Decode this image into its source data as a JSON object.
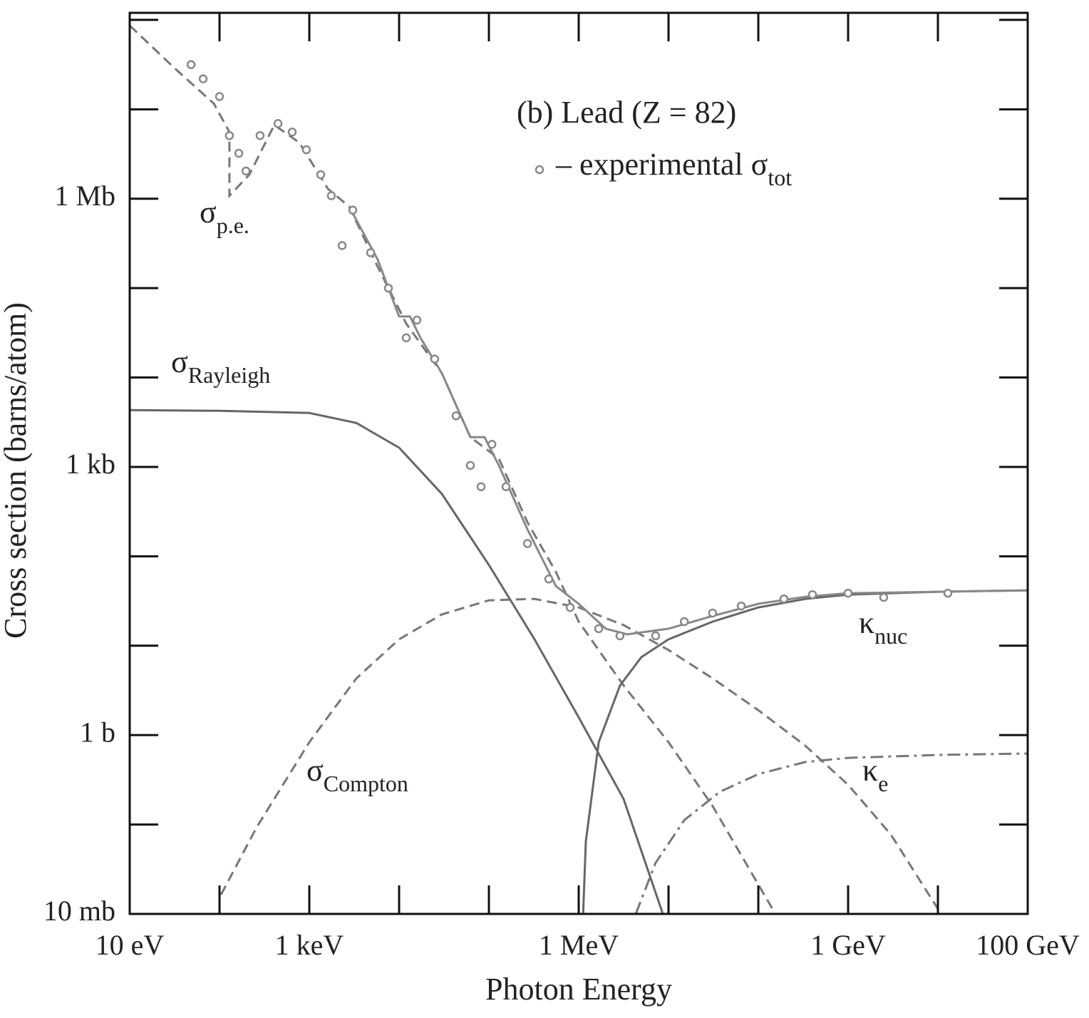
{
  "chart_data": {
    "type": "line",
    "xlabel": "Photon Energy",
    "ylabel": "Cross section (barns/atom)",
    "log_x": true,
    "log_y": true,
    "xlim": [
      10,
      100000000000.0
    ],
    "ylim": [
      0.01,
      120000000.0
    ],
    "xticks": [
      {
        "value": 10,
        "label": "10 eV"
      },
      {
        "value": 1000,
        "label": "1 keV"
      },
      {
        "value": 1000000,
        "label": "1 MeV"
      },
      {
        "value": 1000000000,
        "label": "1 GeV"
      },
      {
        "value": 100000000000,
        "label": "100 GeV"
      }
    ],
    "xminor": [
      100,
      10000,
      100000,
      10000000,
      100000000,
      10000000000
    ],
    "yticks": [
      {
        "value": 0.01,
        "label": "10 mb"
      },
      {
        "value": 1,
        "label": "1 b"
      },
      {
        "value": 1000,
        "label": "1 kb"
      },
      {
        "value": 1000000,
        "label": "1 Mb"
      }
    ],
    "yminor": [
      0.1,
      10,
      100,
      10000,
      100000,
      10000000,
      100000000
    ],
    "annotation": "(b) Lead (Z = 82)",
    "series": [
      {
        "name": "σ",
        "name_sub": "p.e.",
        "style": "dashed",
        "color": "#777",
        "x": [
          10,
          31.6,
          86.5,
          129,
          129,
          215,
          408,
          774,
          1610,
          2780,
          5780,
          12000,
          29900,
          62200,
          129000,
          269000,
          557000,
          1000000,
          3160000,
          10000000,
          31000000,
          155000000
        ],
        "values": [
          86500000,
          28800000,
          11600000,
          5570000,
          1080000,
          1860000,
          6680000,
          4240000,
          1290000,
          818000,
          173000,
          40100,
          11200,
          2150,
          1240,
          240,
          66.9,
          18.6,
          3.59,
          0.833,
          0.161,
          0.01
        ]
      },
      {
        "name": "σ",
        "name_sub": "Rayleigh",
        "style": "solid",
        "color": "#666",
        "x": [
          10,
          100,
          1000,
          3340,
          10000,
          29900,
          100000,
          322000,
          1000000,
          3160000,
          8650000
        ],
        "values": [
          4315,
          4240,
          4010,
          3100,
          1640,
          500,
          80,
          11.8,
          1.58,
          0.193,
          0.01
        ]
      },
      {
        "name": "σ",
        "name_sub": "Compton",
        "style": "dashed",
        "color": "#777",
        "x": [
          104,
          259,
          1000,
          3340,
          10000,
          29900,
          100000,
          322000,
          1000000,
          3160000,
          10000000,
          31000000,
          100000000,
          334000000,
          1000000000,
          2990000000,
          10000000000
        ],
        "values": [
          0.0164,
          0.093,
          0.833,
          4.31,
          11.8,
          22.4,
          32.2,
          33.4,
          26.8,
          17.0,
          8.96,
          4.31,
          1.9,
          0.76,
          0.278,
          0.0774,
          0.0114
        ]
      },
      {
        "name": "κ",
        "name_sub": "nuc",
        "style": "solid",
        "color": "#666",
        "x": [
          1120000,
          1200000,
          1670000,
          2880000,
          4990000,
          10000000,
          31000000,
          100000000,
          334000000,
          1000000000,
          10000000000,
          100000000000
        ],
        "values": [
          0.01,
          0.0645,
          0.833,
          3.59,
          7.46,
          11.8,
          18.6,
          26.8,
          33.4,
          37.3,
          40.1,
          41.6
        ]
      },
      {
        "name": "κ",
        "name_sub": "e",
        "style": "dashdot",
        "color": "#777",
        "x": [
          4320000,
          7190000,
          15000000,
          37200000,
          100000000,
          334000000,
          1000000000,
          10000000000,
          100000000000
        ],
        "values": [
          0.01,
          0.0373,
          0.112,
          0.232,
          0.366,
          0.5,
          0.557,
          0.6,
          0.622
        ]
      },
      {
        "style": "solid",
        "color": "#888",
        "x": [
          2780,
          5780,
          10000,
          13200,
          17300,
          29900,
          62200,
          89500,
          129000,
          269000,
          557000,
          1000000,
          2000000,
          3470000,
          10000000,
          31000000,
          100000000,
          334000000,
          1000000000,
          10000000000,
          100000000000
        ],
        "values": [
          818000,
          208000,
          48200,
          48200,
          27800,
          11200,
          2150,
          2150,
          1040,
          200,
          46.4,
          29.4,
          15.5,
          13.4,
          15.5,
          21.5,
          29.4,
          35.3,
          38.7,
          40.1,
          41.6
        ]
      },
      {
        "name": "– experimental σ",
        "name_sub": "tot",
        "style": "points",
        "color": "#888",
        "x": [
          48.2,
          65.7,
          100,
          129,
          164,
          197,
          283,
          448,
          645,
          929,
          1340,
          1760,
          2320,
          3050,
          4820,
          7600,
          12000,
          15800,
          24900,
          43100,
          62200,
          81800,
          108000,
          155000,
          269000,
          464000,
          803000,
          1670000,
          2880000,
          7190000,
          15000000,
          31000000,
          64600000,
          193000000,
          401000000,
          1000000000,
          2490000000,
          12900000000
        ],
        "values": [
          31600000,
          21900000,
          13900000,
          5080000,
          3220000,
          2040000,
          5080000,
          6930000,
          5570000,
          3530000,
          1860000,
          1080000,
          299000,
          746000,
          249000,
          100000,
          27800,
          43900,
          16100,
          3730,
          1040,
          600,
          1790,
          600,
          139,
          55.7,
          26.8,
          15.5,
          12.9,
          12.9,
          18.6,
          23.2,
          27.8,
          33.4,
          37.3,
          38.7,
          34.7,
          38.7
        ]
      }
    ]
  }
}
